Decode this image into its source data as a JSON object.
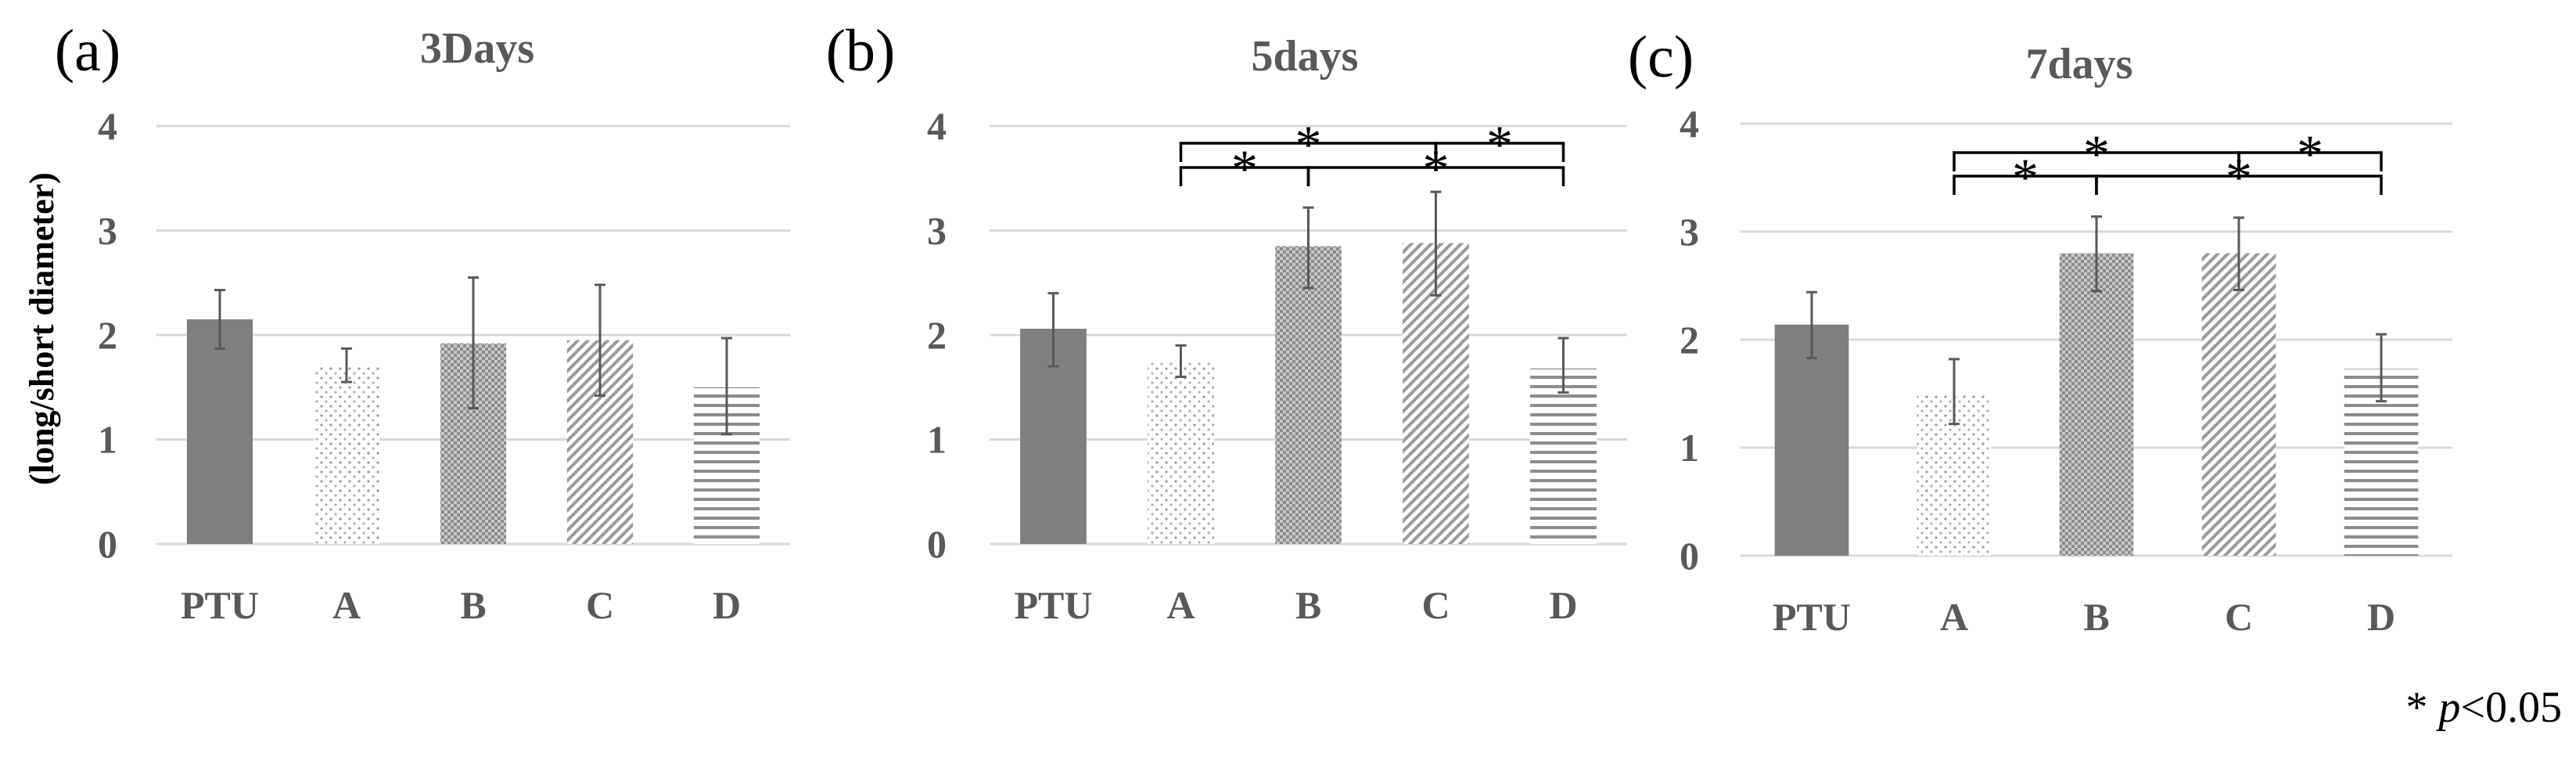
{
  "figure": {
    "ylabel": "(long/short diameter)",
    "footnote": {
      "star": "*",
      "p": "p",
      "rest": "<0.05"
    }
  },
  "colors": {
    "pattern_gray": "#808080",
    "dot_gray": "#9a9a9a",
    "dark_gray": "#7f7f7f",
    "text_gray": "#595959",
    "grid": "#d9d9d9"
  },
  "chart_data": [
    {
      "type": "bar",
      "panel_label": "(a)",
      "title": "3Days",
      "categories": [
        "PTU",
        "A",
        "B",
        "C",
        "D"
      ],
      "values": [
        2.15,
        1.7,
        1.92,
        1.95,
        1.5
      ],
      "errors": [
        [
          1.87,
          2.43
        ],
        [
          1.55,
          1.87
        ],
        [
          1.3,
          2.55
        ],
        [
          1.42,
          2.48
        ],
        [
          1.05,
          1.97
        ]
      ],
      "patterns": [
        "solid",
        "dots",
        "checker",
        "diagonal",
        "horizontal"
      ],
      "yticks": [
        "0",
        "1",
        "2",
        "3",
        "4"
      ],
      "ylim": [
        0,
        4
      ],
      "significance": []
    },
    {
      "type": "bar",
      "panel_label": "(b)",
      "title": "5days",
      "categories": [
        "PTU",
        "A",
        "B",
        "C",
        "D"
      ],
      "values": [
        2.06,
        1.75,
        2.85,
        2.88,
        1.68
      ],
      "errors": [
        [
          1.7,
          2.4
        ],
        [
          1.6,
          1.9
        ],
        [
          2.45,
          3.22
        ],
        [
          2.38,
          3.37
        ],
        [
          1.45,
          1.97
        ]
      ],
      "patterns": [
        "solid",
        "dots",
        "checker",
        "diagonal",
        "horizontal"
      ],
      "yticks": [
        "0",
        "1",
        "2",
        "3",
        "4"
      ],
      "ylim": [
        0,
        4
      ],
      "significance": [
        {
          "from": "A",
          "to": "C",
          "label": "*",
          "level": "upper"
        },
        {
          "from": "A",
          "to": "B",
          "label": "*",
          "level": "lower"
        },
        {
          "from": "C",
          "to": "D",
          "label": "*",
          "level": "upper"
        },
        {
          "from": "B",
          "to": "D",
          "label": "*",
          "level": "lower"
        }
      ]
    },
    {
      "type": "bar",
      "panel_label": "(c)",
      "title": "7days",
      "categories": [
        "PTU",
        "A",
        "B",
        "C",
        "D"
      ],
      "values": [
        2.14,
        1.5,
        2.8,
        2.8,
        1.73
      ],
      "errors": [
        [
          1.83,
          2.44
        ],
        [
          1.22,
          1.82
        ],
        [
          2.45,
          3.14
        ],
        [
          2.46,
          3.13
        ],
        [
          1.43,
          2.05
        ]
      ],
      "patterns": [
        "solid",
        "dots",
        "checker",
        "diagonal",
        "horizontal"
      ],
      "yticks": [
        "0",
        "1",
        "2",
        "3",
        "4"
      ],
      "ylim": [
        0,
        4
      ],
      "significance": [
        {
          "from": "A",
          "to": "C",
          "label": "*",
          "level": "upper"
        },
        {
          "from": "A",
          "to": "B",
          "label": "*",
          "level": "lower"
        },
        {
          "from": "C",
          "to": "D",
          "label": "*",
          "level": "upper"
        },
        {
          "from": "B",
          "to": "D",
          "label": "*",
          "level": "lower"
        }
      ]
    }
  ]
}
